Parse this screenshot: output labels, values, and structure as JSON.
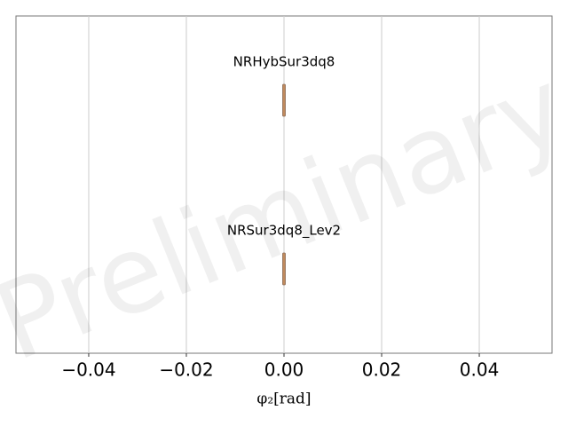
{
  "chart_data": {
    "type": "violin",
    "xlabel": "φ₂[rad]",
    "watermark": "Preliminary",
    "categories": [
      "NRHybSur3dq8",
      "NRSur3dq8_Lev2"
    ],
    "values": [
      0,
      0
    ],
    "color": "#c08a5c",
    "xlim": [
      -0.0549,
      0.0549
    ],
    "xticks": [
      {
        "value": -0.04,
        "label": "−0.04"
      },
      {
        "value": -0.02,
        "label": "−0.02"
      },
      {
        "value": 0,
        "label": "0.00"
      },
      0.02,
      0.04
    ],
    "grid": true
  }
}
